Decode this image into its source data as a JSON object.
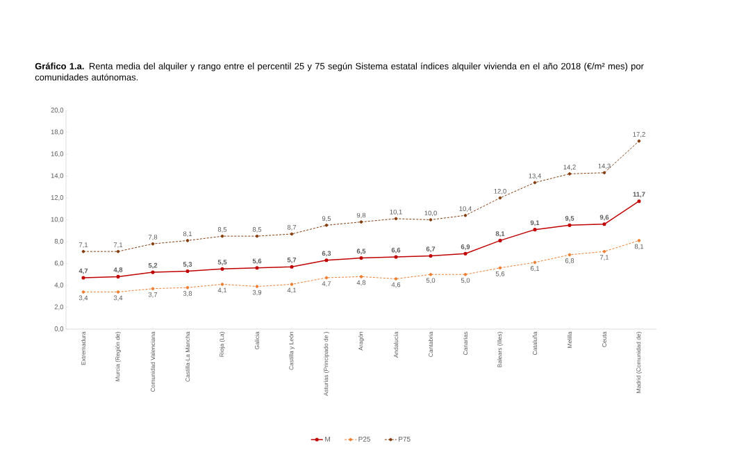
{
  "chart_data": {
    "type": "line",
    "title": "**Gráfico 1.a.** Renta media del alquiler y rango entre el percentil 25 y 75 según Sistema estatal índices alquiler vivienda en el año 2018 (€/m² mes) por comunidades autónomas.",
    "categories": [
      "Extremadura",
      "Murcia (Región de)",
      "Comunidad Valenciana",
      "Castilla-La Mancha",
      "Rioja (La)",
      "Galicia",
      "Castilla y León",
      "Asturias (Principado de )",
      "Aragón",
      "Andalucía",
      "Cantabria",
      "Canarias",
      "Balears (Illes)",
      "Cataluña",
      "Melilla",
      "Ceuta",
      "Madrid (Comunidad de)"
    ],
    "series": [
      {
        "name": "M",
        "color": "#c00000",
        "line_style": "solid",
        "values": [
          4.7,
          4.8,
          5.2,
          5.3,
          5.5,
          5.6,
          5.7,
          6.3,
          6.5,
          6.6,
          6.7,
          6.9,
          8.1,
          9.1,
          9.5,
          9.6,
          11.7
        ],
        "value_labels": [
          "4,7",
          "4,8",
          "5,2",
          "5,3",
          "5,5",
          "5,6",
          "5,7",
          "6,3",
          "6,5",
          "6,6",
          "6,7",
          "6,9",
          "8,1",
          "9,1",
          "9,5",
          "9,6",
          "11,7"
        ]
      },
      {
        "name": "P25",
        "color": "#ed7d31",
        "line_style": "dashed",
        "values": [
          3.4,
          3.4,
          3.7,
          3.8,
          4.1,
          3.9,
          4.1,
          4.7,
          4.8,
          4.6,
          5.0,
          5.0,
          5.6,
          6.1,
          6.8,
          7.1,
          8.1
        ],
        "value_labels": [
          "3,4",
          "3,4",
          "3,7",
          "3,8",
          "4,1",
          "3,9",
          "4,1",
          "4,7",
          "4,8",
          "4,6",
          "5,0",
          "5,0",
          "5,6",
          "6,1",
          "6,8",
          "7,1",
          "8,1"
        ]
      },
      {
        "name": "P75",
        "color": "#843c0c",
        "line_style": "dashed",
        "values": [
          7.1,
          7.1,
          7.8,
          8.1,
          8.5,
          8.5,
          8.7,
          9.5,
          9.8,
          10.1,
          10.0,
          10.4,
          12.0,
          13.4,
          14.2,
          14.3,
          17.2
        ],
        "value_labels": [
          "7,1",
          "7,1",
          "7,8",
          "8,1",
          "8,5",
          "8,5",
          "8,7",
          "9,5",
          "9,8",
          "10,1",
          "10,0",
          "10,4",
          "12,0",
          "13,4",
          "14,2",
          "14,3",
          "17,2"
        ]
      }
    ],
    "ylim": [
      0,
      20
    ],
    "yticks": [
      {
        "value": 0,
        "label": "0,0"
      },
      {
        "value": 2,
        "label": "2,0"
      },
      {
        "value": 4,
        "label": "4,0"
      },
      {
        "value": 6,
        "label": "6,0"
      },
      {
        "value": 8,
        "label": "8,0"
      },
      {
        "value": 10,
        "label": "10,0"
      },
      {
        "value": 12,
        "label": "12,0"
      },
      {
        "value": 14,
        "label": "14,0"
      },
      {
        "value": 16,
        "label": "16,0"
      },
      {
        "value": 18,
        "label": "18,0"
      },
      {
        "value": 20,
        "label": "20,0"
      }
    ],
    "marker": "circle",
    "legend": "bottom"
  }
}
